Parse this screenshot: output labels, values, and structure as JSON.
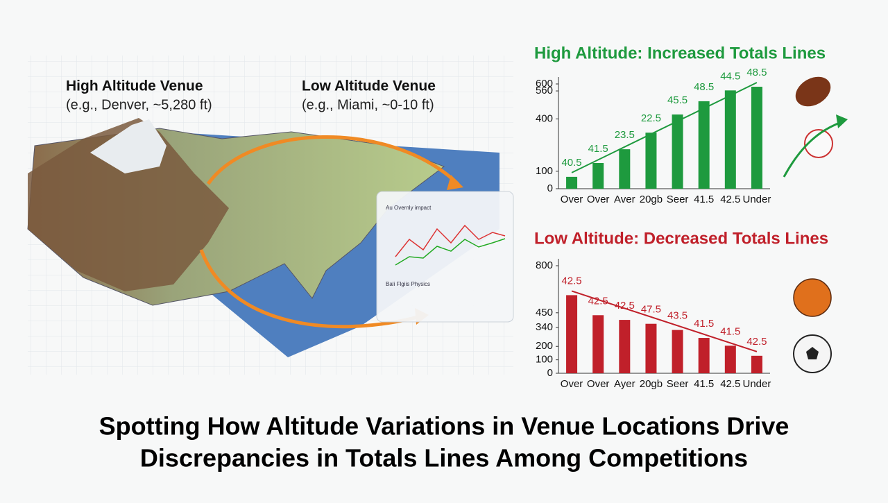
{
  "headline": [
    "Spotting How Altitude Variations in Venue Locations Drive",
    "Discrepancies in Totals Lines Among Competitions"
  ],
  "map": {
    "high_label": "High Altitude Venue",
    "high_note": "(e.g., Denver, ~5,280 ft)",
    "low_label": "Low Altitude Venue",
    "low_note": "(e.g., Miami, ~0-10 ft)",
    "panel_heading": "Au Overnly impact",
    "panel_section": "Bali Flgiis Physics"
  },
  "chart_data": [
    {
      "type": "bar",
      "title": "High Altitude: Increased Totals Lines",
      "color": "#1e9a3e",
      "categories": [
        "Over",
        "Over",
        "Aver",
        "20gb",
        "Seer",
        "41.5",
        "42.5",
        "Under"
      ],
      "values": [
        68,
        147,
        226,
        321,
        425,
        501,
        563,
        584
      ],
      "bar_labels": [
        "40.5",
        "41.5",
        "23.5",
        "22.5",
        "45.5",
        "48.5",
        "44.5",
        "48.5"
      ],
      "ylim": [
        0,
        600
      ],
      "yticks": [
        0,
        100,
        400,
        560,
        600
      ]
    },
    {
      "type": "bar",
      "title": "Low Altitude: Decreased Totals Lines",
      "color": "#c0202a",
      "categories": [
        "Over",
        "Over",
        "Ayer",
        "20gb",
        "Seer",
        "41.5",
        "42.5",
        "Under"
      ],
      "values": [
        581,
        432,
        397,
        368,
        322,
        263,
        205,
        130
      ],
      "bar_labels": [
        "42.5",
        "42.5",
        "42.5",
        "47.5",
        "43.5",
        "41.5",
        "41.5",
        "42.5"
      ],
      "ylim": [
        0,
        800
      ],
      "yticks": [
        0,
        100,
        200,
        340,
        450,
        800
      ]
    }
  ]
}
